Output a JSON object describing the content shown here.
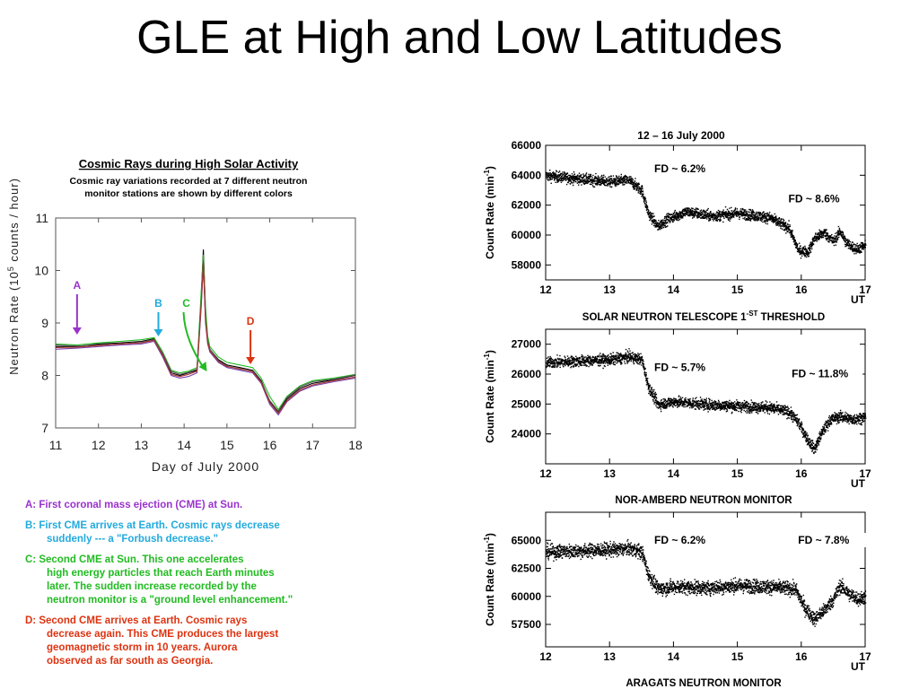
{
  "title": "GLE at High and Low Latitudes",
  "colors": {
    "A": "#9933cc",
    "B": "#22aadd",
    "C": "#22bb22",
    "D": "#dd3311"
  },
  "notes": [
    {
      "key": "A",
      "head": "A:  First coronal mass ejection (CME) at Sun.",
      "body": []
    },
    {
      "key": "B",
      "head": "B:  First CME arrives at Earth.  Cosmic rays decrease",
      "body": [
        "suddenly --- a \"Forbush decrease.\""
      ]
    },
    {
      "key": "C",
      "head": "C:  Second CME at Sun.  This one accelerates",
      "body": [
        "high energy particles that reach Earth minutes",
        "later.  The sudden increase recorded by the",
        "neutron monitor is a \"ground level enhancement.\""
      ]
    },
    {
      "key": "D",
      "head": "D:  Second CME arrives at Earth.  Cosmic rays",
      "body": [
        "decrease again.  This CME produces the largest",
        "geomagnetic storm in 10 years.  Aurora",
        "observed as far south as Georgia."
      ]
    }
  ],
  "chart_data": [
    {
      "type": "line",
      "title": "Cosmic Rays during High Solar Activity",
      "subtitle_lines": [
        "Cosmic ray variations recorded at 7 different neutron",
        "monitor stations are shown by different colors"
      ],
      "xlabel": "Day of July 2000",
      "ylabel_prefix": "Neutron Rate (10",
      "ylabel_exp": "5",
      "ylabel_suffix": " counts / hour)",
      "xlim": [
        11,
        18
      ],
      "ylim": [
        7,
        11
      ],
      "xticks": [
        "11",
        "12",
        "13",
        "14",
        "15",
        "16",
        "17",
        "18"
      ],
      "yticks": [
        "7",
        "8",
        "9",
        "10",
        "11"
      ],
      "x": [
        11,
        11.5,
        12,
        12.5,
        13,
        13.3,
        13.5,
        13.7,
        13.9,
        14.1,
        14.3,
        14.4,
        14.45,
        14.5,
        14.55,
        14.6,
        14.8,
        15,
        15.3,
        15.6,
        15.8,
        16,
        16.2,
        16.4,
        16.7,
        17,
        17.5,
        18
      ],
      "series": [
        {
          "color": "#000000",
          "values": [
            8.55,
            8.55,
            8.6,
            8.62,
            8.65,
            8.7,
            8.4,
            8.05,
            8.0,
            8.05,
            8.1,
            9.5,
            10.4,
            9.2,
            8.7,
            8.5,
            8.3,
            8.2,
            8.15,
            8.1,
            7.9,
            7.5,
            7.3,
            7.55,
            7.75,
            7.85,
            7.92,
            8.0
          ]
        },
        {
          "color": "#22bb22",
          "values": [
            8.6,
            8.58,
            8.62,
            8.65,
            8.68,
            8.72,
            8.45,
            8.1,
            8.05,
            8.08,
            8.15,
            9.6,
            10.3,
            9.3,
            8.75,
            8.55,
            8.35,
            8.25,
            8.2,
            8.15,
            7.95,
            7.6,
            7.35,
            7.6,
            7.8,
            7.9,
            7.95,
            8.02
          ]
        },
        {
          "color": "#7744aa",
          "values": [
            8.5,
            8.52,
            8.55,
            8.58,
            8.6,
            8.65,
            8.35,
            8.0,
            7.95,
            7.98,
            8.05,
            9.3,
            10.1,
            9.0,
            8.6,
            8.45,
            8.25,
            8.15,
            8.1,
            8.05,
            7.85,
            7.45,
            7.25,
            7.5,
            7.7,
            7.8,
            7.88,
            7.95
          ]
        },
        {
          "color": "#555555",
          "values": [
            8.58,
            8.56,
            8.58,
            8.6,
            8.63,
            8.68,
            8.42,
            8.08,
            8.02,
            8.06,
            8.12,
            9.4,
            10.2,
            9.1,
            8.65,
            8.5,
            8.28,
            8.18,
            8.12,
            8.08,
            7.88,
            7.52,
            7.32,
            7.58,
            7.78,
            7.88,
            7.93,
            8.01
          ]
        },
        {
          "color": "#aa3333",
          "values": [
            8.53,
            8.54,
            8.57,
            8.6,
            8.62,
            8.67,
            8.38,
            8.02,
            7.98,
            8.02,
            8.08,
            9.35,
            10.15,
            9.05,
            8.62,
            8.47,
            8.27,
            8.17,
            8.13,
            8.07,
            7.87,
            7.48,
            7.28,
            7.52,
            7.72,
            7.82,
            7.9,
            7.97
          ]
        }
      ],
      "annotations": [
        {
          "label": "A",
          "x": 11.5
        },
        {
          "label": "B",
          "x": 13.4
        },
        {
          "label": "C",
          "x": 14.05
        },
        {
          "label": "D",
          "x": 15.55
        }
      ]
    },
    {
      "type": "scatter",
      "title": "12 – 16 July 2000",
      "xlabel_unit": "UT",
      "caption": "SOLAR NEUTRON TELESCOPE 1",
      "caption_sup": "-ST",
      "caption_end": " THRESHOLD",
      "ylabel_prefix": "Count Rate (min",
      "ylabel_exp": "-1",
      "ylabel_suffix": ")",
      "xlim": [
        12,
        17
      ],
      "ylim": [
        57000,
        66000
      ],
      "xticks": [
        "12",
        "13",
        "14",
        "15",
        "16",
        "17"
      ],
      "yticks": [
        "58000",
        "60000",
        "62000",
        "64000",
        "66000"
      ],
      "labels": [
        {
          "text": "FD ~ 6.2%",
          "x": 13.7,
          "y": 64200
        },
        {
          "text": "FD ~ 8.6%",
          "x": 15.8,
          "y": 62200
        }
      ],
      "x": [
        12,
        12.5,
        13,
        13.3,
        13.5,
        13.6,
        13.75,
        13.9,
        14.2,
        14.6,
        15,
        15.5,
        15.8,
        15.95,
        16.1,
        16.2,
        16.35,
        16.5,
        16.6,
        16.7,
        16.85,
        17
      ],
      "values": [
        64000,
        63800,
        63600,
        63700,
        63000,
        61500,
        60600,
        61100,
        61600,
        61300,
        61500,
        61200,
        60500,
        59000,
        58900,
        59800,
        60200,
        59600,
        60300,
        59500,
        59100,
        59300
      ],
      "noise": 350
    },
    {
      "type": "scatter",
      "caption": "NOR-AMBERD NEUTRON MONITOR",
      "xlabel_unit": "UT",
      "ylabel_prefix": "Count Rate (min",
      "ylabel_exp": "-1",
      "ylabel_suffix": ")",
      "xlim": [
        12,
        17
      ],
      "ylim": [
        23000,
        27500
      ],
      "xticks": [
        "12",
        "13",
        "14",
        "15",
        "16",
        "17"
      ],
      "yticks": [
        "24000",
        "25000",
        "26000",
        "27000"
      ],
      "labels": [
        {
          "text": "FD ~ 5.7%",
          "x": 13.7,
          "y": 26100
        },
        {
          "text": "FD ~ 11.8%",
          "x": 15.85,
          "y": 25900
        }
      ],
      "x": [
        12,
        12.5,
        13,
        13.3,
        13.5,
        13.6,
        13.75,
        14,
        14.5,
        15,
        15.5,
        15.8,
        15.95,
        16.1,
        16.2,
        16.3,
        16.45,
        16.6,
        16.8,
        17
      ],
      "values": [
        26400,
        26450,
        26500,
        26600,
        26500,
        25600,
        25000,
        25100,
        25000,
        24950,
        24900,
        24750,
        24400,
        23800,
        23500,
        24000,
        24500,
        24600,
        24500,
        24600
      ],
      "noise": 180
    },
    {
      "type": "scatter",
      "caption": "ARAGATS NEUTRON MONITOR",
      "xlabel_unit": "UT",
      "ylabel_prefix": "Count Rate (min",
      "ylabel_exp": "-1",
      "ylabel_suffix": ")",
      "xlim": [
        12,
        17
      ],
      "ylim": [
        55500,
        67500
      ],
      "xticks": [
        "12",
        "13",
        "14",
        "15",
        "16",
        "17"
      ],
      "yticks": [
        "57500",
        "60000",
        "62500",
        "65000"
      ],
      "labels": [
        {
          "text": "FD ~ 6.2%",
          "x": 13.7,
          "y": 64700
        },
        {
          "text": "FD ~ 7.8%",
          "x": 15.95,
          "y": 64700
        }
      ],
      "x": [
        12,
        12.5,
        13,
        13.3,
        13.5,
        13.6,
        13.75,
        14,
        14.5,
        15,
        15.5,
        15.9,
        16.05,
        16.2,
        16.35,
        16.5,
        16.6,
        16.75,
        16.9,
        17
      ],
      "values": [
        64000,
        64100,
        64200,
        64300,
        64000,
        62000,
        60700,
        60900,
        60800,
        61000,
        60900,
        60700,
        59000,
        58000,
        58800,
        59800,
        61000,
        60200,
        59800,
        60000
      ],
      "noise": 600
    }
  ]
}
